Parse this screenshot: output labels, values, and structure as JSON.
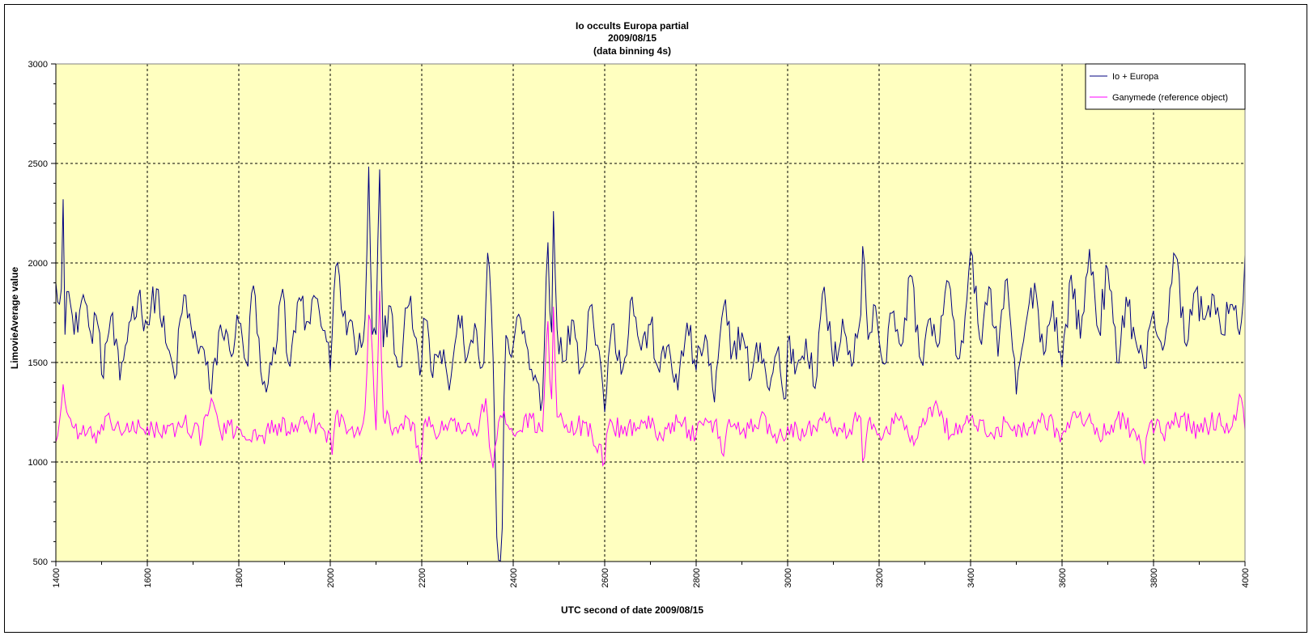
{
  "chart_data": {
    "type": "line",
    "title_lines": [
      "Io occults Europa partial",
      "2009/08/15",
      "(data binning 4s)"
    ],
    "xlabel": "UTC second  of date 2009/08/15",
    "ylabel": "LimovieAverage value",
    "xlim": [
      1400,
      4000
    ],
    "ylim": [
      500,
      3000
    ],
    "xticks": [
      1400,
      1600,
      1800,
      2000,
      2200,
      2400,
      2600,
      2800,
      3000,
      3200,
      3400,
      3600,
      3800,
      4000
    ],
    "yticks": [
      500,
      1000,
      1500,
      2000,
      2500,
      3000
    ],
    "x_step": 4,
    "grid": true,
    "legend_position": "top-right",
    "plot_background": "#ffffc0",
    "series": [
      {
        "name": "Io  + Europa",
        "color": "#000080",
        "anchors": [
          [
            1400,
            1900
          ],
          [
            1412,
            1870
          ],
          [
            1416,
            2320
          ],
          [
            1420,
            1640
          ],
          [
            1425,
            1910
          ],
          [
            1440,
            1640
          ],
          [
            1460,
            1840
          ],
          [
            1475,
            1640
          ],
          [
            1490,
            1750
          ],
          [
            1500,
            1440
          ],
          [
            1520,
            1730
          ],
          [
            1540,
            1410
          ],
          [
            1560,
            1700
          ],
          [
            1580,
            1830
          ],
          [
            1600,
            1690
          ],
          [
            1620,
            1870
          ],
          [
            1640,
            1600
          ],
          [
            1660,
            1420
          ],
          [
            1680,
            1840
          ],
          [
            1700,
            1620
          ],
          [
            1720,
            1580
          ],
          [
            1740,
            1340
          ],
          [
            1760,
            1690
          ],
          [
            1780,
            1560
          ],
          [
            1800,
            1700
          ],
          [
            1820,
            1480
          ],
          [
            1830,
            1940
          ],
          [
            1850,
            1400
          ],
          [
            1860,
            1350
          ],
          [
            1880,
            1540
          ],
          [
            1895,
            1900
          ],
          [
            1910,
            1440
          ],
          [
            1930,
            1840
          ],
          [
            1950,
            1690
          ],
          [
            1970,
            1840
          ],
          [
            1990,
            1640
          ],
          [
            2000,
            1460
          ],
          [
            2010,
            1950
          ],
          [
            2015,
            2030
          ],
          [
            2025,
            1740
          ],
          [
            2040,
            1700
          ],
          [
            2060,
            1560
          ],
          [
            2075,
            1620
          ],
          [
            2085,
            2580
          ],
          [
            2090,
            1640
          ],
          [
            2100,
            1640
          ],
          [
            2108,
            2470
          ],
          [
            2115,
            1560
          ],
          [
            2130,
            1820
          ],
          [
            2150,
            1440
          ],
          [
            2170,
            1810
          ],
          [
            2190,
            1600
          ],
          [
            2198,
            1380
          ],
          [
            2205,
            1780
          ],
          [
            2220,
            1460
          ],
          [
            2240,
            1560
          ],
          [
            2260,
            1360
          ],
          [
            2280,
            1740
          ],
          [
            2300,
            1530
          ],
          [
            2320,
            1660
          ],
          [
            2335,
            1430
          ],
          [
            2345,
            2120
          ],
          [
            2355,
            1640
          ],
          [
            2365,
            510
          ],
          [
            2375,
            500
          ],
          [
            2382,
            1660
          ],
          [
            2395,
            1510
          ],
          [
            2410,
            1760
          ],
          [
            2430,
            1580
          ],
          [
            2450,
            1420
          ],
          [
            2465,
            1310
          ],
          [
            2475,
            2190
          ],
          [
            2483,
            1500
          ],
          [
            2488,
            2260
          ],
          [
            2495,
            1680
          ],
          [
            2510,
            1480
          ],
          [
            2530,
            1740
          ],
          [
            2550,
            1440
          ],
          [
            2570,
            1820
          ],
          [
            2590,
            1530
          ],
          [
            2600,
            1250
          ],
          [
            2615,
            1700
          ],
          [
            2640,
            1470
          ],
          [
            2660,
            1830
          ],
          [
            2680,
            1560
          ],
          [
            2700,
            1690
          ],
          [
            2720,
            1450
          ],
          [
            2740,
            1590
          ],
          [
            2760,
            1360
          ],
          [
            2780,
            1700
          ],
          [
            2800,
            1460
          ],
          [
            2820,
            1640
          ],
          [
            2840,
            1300
          ],
          [
            2860,
            1780
          ],
          [
            2880,
            1560
          ],
          [
            2900,
            1650
          ],
          [
            2920,
            1420
          ],
          [
            2940,
            1600
          ],
          [
            2960,
            1360
          ],
          [
            2980,
            1580
          ],
          [
            2995,
            1250
          ],
          [
            3000,
            1600
          ],
          [
            3020,
            1480
          ],
          [
            3040,
            1620
          ],
          [
            3060,
            1370
          ],
          [
            3080,
            1880
          ],
          [
            3100,
            1480
          ],
          [
            3120,
            1720
          ],
          [
            3140,
            1480
          ],
          [
            3160,
            1740
          ],
          [
            3165,
            2170
          ],
          [
            3175,
            1600
          ],
          [
            3190,
            1820
          ],
          [
            3210,
            1460
          ],
          [
            3230,
            1780
          ],
          [
            3250,
            1560
          ],
          [
            3270,
            1980
          ],
          [
            3290,
            1480
          ],
          [
            3310,
            1740
          ],
          [
            3330,
            1560
          ],
          [
            3350,
            1950
          ],
          [
            3370,
            1490
          ],
          [
            3390,
            1760
          ],
          [
            3400,
            2060
          ],
          [
            3420,
            1620
          ],
          [
            3440,
            1880
          ],
          [
            3460,
            1530
          ],
          [
            3480,
            1920
          ],
          [
            3500,
            1340
          ],
          [
            3520,
            1680
          ],
          [
            3540,
            1900
          ],
          [
            3560,
            1540
          ],
          [
            3580,
            1810
          ],
          [
            3600,
            1480
          ],
          [
            3620,
            1940
          ],
          [
            3640,
            1620
          ],
          [
            3660,
            2070
          ],
          [
            3680,
            1660
          ],
          [
            3700,
            1970
          ],
          [
            3720,
            1500
          ],
          [
            3740,
            1830
          ],
          [
            3760,
            1620
          ],
          [
            3780,
            1470
          ],
          [
            3800,
            1760
          ],
          [
            3820,
            1560
          ],
          [
            3840,
            1900
          ],
          [
            3850,
            2070
          ],
          [
            3870,
            1550
          ],
          [
            3890,
            1880
          ],
          [
            3910,
            1700
          ],
          [
            3930,
            1860
          ],
          [
            3950,
            1620
          ],
          [
            3970,
            1810
          ],
          [
            3990,
            1620
          ],
          [
            4000,
            2040
          ],
          [
            4003,
            1730
          ]
        ]
      },
      {
        "name": "Ganymede (reference object)",
        "color": "#ff00ff",
        "anchors": [
          [
            1400,
            1100
          ],
          [
            1410,
            1230
          ],
          [
            1416,
            1390
          ],
          [
            1422,
            1260
          ],
          [
            1440,
            1170
          ],
          [
            1480,
            1120
          ],
          [
            1520,
            1200
          ],
          [
            1560,
            1150
          ],
          [
            1600,
            1180
          ],
          [
            1640,
            1140
          ],
          [
            1680,
            1200
          ],
          [
            1720,
            1130
          ],
          [
            1740,
            1320
          ],
          [
            1760,
            1150
          ],
          [
            1800,
            1170
          ],
          [
            1840,
            1110
          ],
          [
            1880,
            1190
          ],
          [
            1920,
            1150
          ],
          [
            1960,
            1200
          ],
          [
            2000,
            1140
          ],
          [
            2005,
            1010
          ],
          [
            2010,
            1240
          ],
          [
            2040,
            1160
          ],
          [
            2075,
            1200
          ],
          [
            2085,
            1800
          ],
          [
            2090,
            1650
          ],
          [
            2100,
            1160
          ],
          [
            2108,
            1860
          ],
          [
            2115,
            1230
          ],
          [
            2140,
            1170
          ],
          [
            2180,
            1200
          ],
          [
            2198,
            970
          ],
          [
            2205,
            1220
          ],
          [
            2240,
            1150
          ],
          [
            2280,
            1200
          ],
          [
            2320,
            1130
          ],
          [
            2340,
            1320
          ],
          [
            2355,
            950
          ],
          [
            2370,
            1240
          ],
          [
            2400,
            1140
          ],
          [
            2440,
            1220
          ],
          [
            2465,
            1150
          ],
          [
            2475,
            1780
          ],
          [
            2483,
            1200
          ],
          [
            2488,
            1780
          ],
          [
            2495,
            1230
          ],
          [
            2520,
            1150
          ],
          [
            2560,
            1200
          ],
          [
            2600,
            1000
          ],
          [
            2610,
            1220
          ],
          [
            2640,
            1140
          ],
          [
            2680,
            1210
          ],
          [
            2720,
            1150
          ],
          [
            2760,
            1200
          ],
          [
            2800,
            1140
          ],
          [
            2840,
            1200
          ],
          [
            2860,
            1030
          ],
          [
            2870,
            1220
          ],
          [
            2900,
            1150
          ],
          [
            2940,
            1220
          ],
          [
            2980,
            1130
          ],
          [
            3000,
            1180
          ],
          [
            3040,
            1140
          ],
          [
            3080,
            1250
          ],
          [
            3120,
            1150
          ],
          [
            3160,
            1220
          ],
          [
            3165,
            950
          ],
          [
            3175,
            1200
          ],
          [
            3200,
            1140
          ],
          [
            3240,
            1220
          ],
          [
            3280,
            1110
          ],
          [
            3320,
            1280
          ],
          [
            3360,
            1140
          ],
          [
            3400,
            1220
          ],
          [
            3440,
            1130
          ],
          [
            3480,
            1200
          ],
          [
            3520,
            1150
          ],
          [
            3560,
            1230
          ],
          [
            3600,
            1140
          ],
          [
            3640,
            1250
          ],
          [
            3680,
            1130
          ],
          [
            3720,
            1220
          ],
          [
            3760,
            1150
          ],
          [
            3780,
            990
          ],
          [
            3790,
            1200
          ],
          [
            3820,
            1140
          ],
          [
            3860,
            1230
          ],
          [
            3900,
            1150
          ],
          [
            3940,
            1220
          ],
          [
            3970,
            1160
          ],
          [
            3990,
            1360
          ],
          [
            4003,
            1100
          ]
        ]
      }
    ]
  }
}
